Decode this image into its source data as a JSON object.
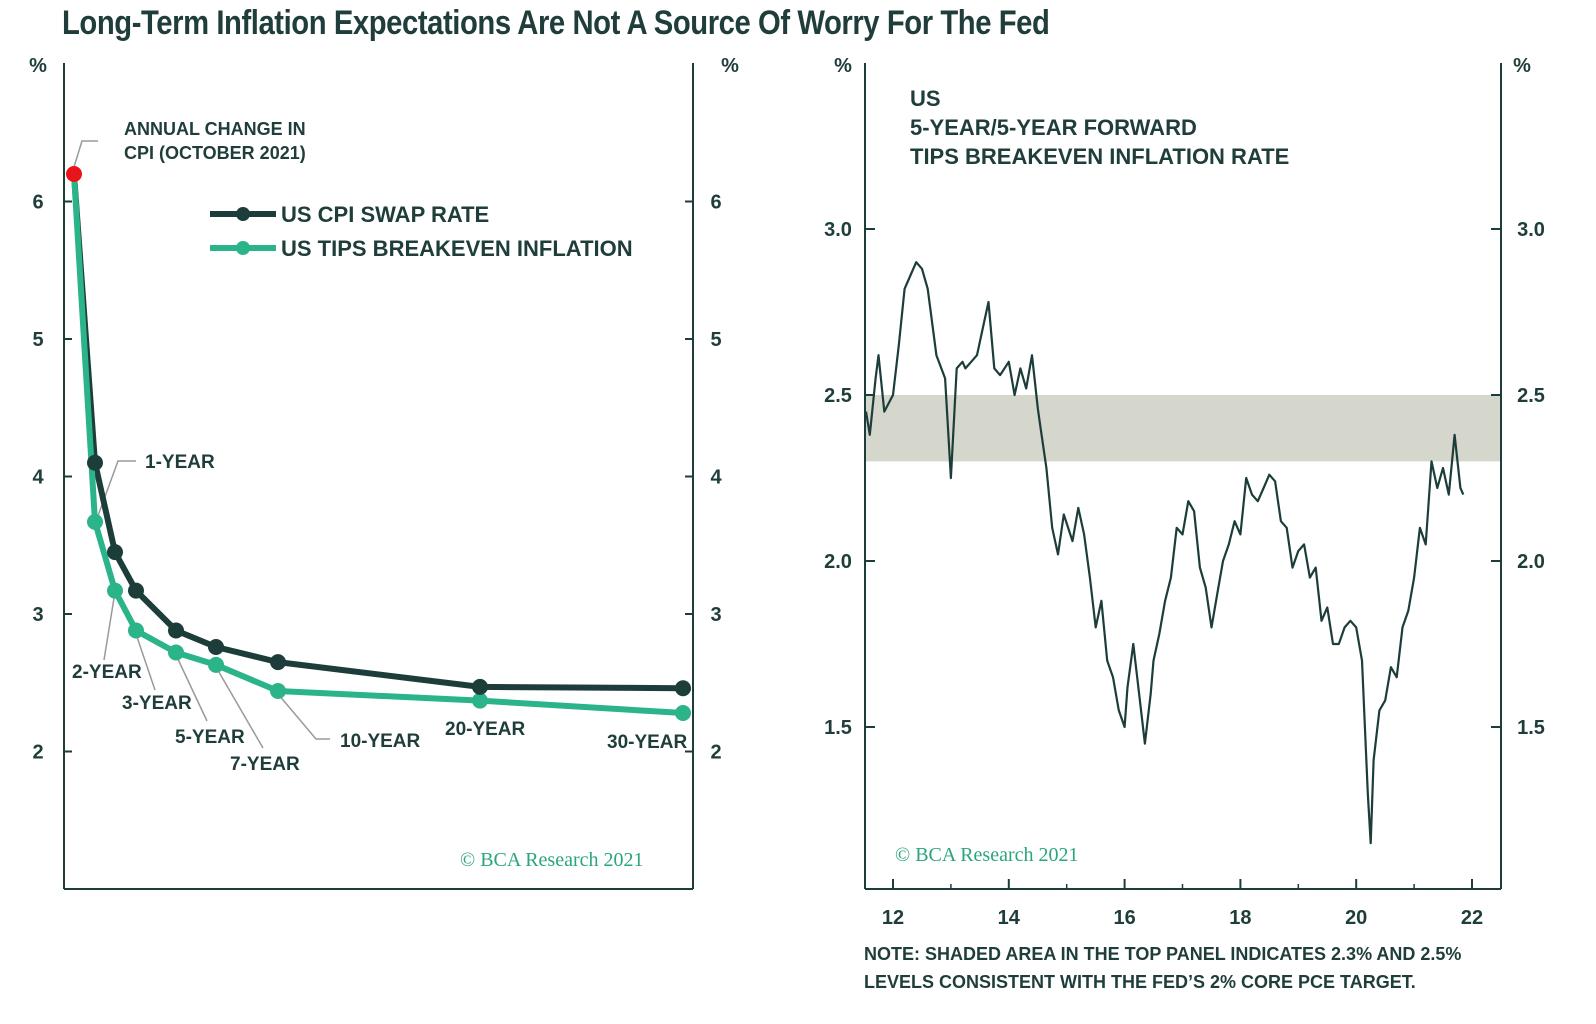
{
  "title": "Long-Term Inflation Expectations Are Not A Source Of Worry For The Fed",
  "colors": {
    "dark": "#1c3d3a",
    "green": "#2bb38a",
    "red": "#e8131b",
    "band": "#d6d7cc",
    "copyright": "#2aa57e"
  },
  "chart_data": [
    {
      "type": "line",
      "y_unit_left": "%",
      "y_unit_right": "%",
      "ylim": [
        1.0,
        6.9
      ],
      "yticks": [
        2,
        3,
        4,
        5,
        6
      ],
      "grid": false,
      "legend_position": "upper-middle",
      "categories": [
        "1-YEAR",
        "2-YEAR",
        "3-YEAR",
        "5-YEAR",
        "7-YEAR",
        "10-YEAR",
        "20-YEAR",
        "30-YEAR"
      ],
      "maturity_years": [
        1,
        2,
        3,
        5,
        7,
        10,
        20,
        30
      ],
      "series": [
        {
          "name": "US CPI SWAP RATE",
          "color": "#1c3d3a",
          "values": [
            4.1,
            3.45,
            3.17,
            2.88,
            2.76,
            2.65,
            2.47,
            2.46
          ]
        },
        {
          "name": "US TIPS BREAKEVEN INFLATION",
          "color": "#2bb38a",
          "values": [
            3.67,
            3.17,
            2.88,
            2.72,
            2.63,
            2.44,
            2.37,
            2.28
          ]
        }
      ],
      "highlight_point": {
        "value": 6.2,
        "label": "ANNUAL CHANGE IN CPI (OCTOBER 2021)",
        "color": "#e8131b"
      },
      "annotations": [
        "1-YEAR",
        "2-YEAR",
        "3-YEAR",
        "5-YEAR",
        "7-YEAR",
        "10-YEAR",
        "20-YEAR",
        "30-YEAR"
      ],
      "copyright": "© BCΑ Research 2021"
    },
    {
      "type": "line",
      "title_lines": [
        "US",
        "5-YEAR/5-YEAR FORWARD",
        "TIPS BREAKEVEN INFLATION RATE"
      ],
      "y_unit_left": "%",
      "y_unit_right": "%",
      "ylim": [
        1.0,
        3.5
      ],
      "yticks": [
        1.5,
        2.0,
        2.5,
        3.0
      ],
      "ytick_labels": [
        "1.5",
        "2.0",
        "2.5",
        "3.0"
      ],
      "xlim": [
        2011.5,
        2022.5
      ],
      "xticks": [
        2012,
        2014,
        2016,
        2018,
        2020,
        2022
      ],
      "xtick_labels": [
        "12",
        "14",
        "16",
        "18",
        "20",
        "22"
      ],
      "grid": false,
      "shaded_band": {
        "from": 2.3,
        "to": 2.5,
        "color": "#d6d7cc"
      },
      "series": [
        {
          "color": "#1c3d3a",
          "x": [
            2011.5,
            2011.6,
            2011.7,
            2011.75,
            2011.85,
            2012.0,
            2012.1,
            2012.2,
            2012.3,
            2012.4,
            2012.5,
            2012.6,
            2012.75,
            2012.9,
            2013.0,
            2013.1,
            2013.2,
            2013.25,
            2013.35,
            2013.45,
            2013.55,
            2013.65,
            2013.75,
            2013.85,
            2014.0,
            2014.1,
            2014.2,
            2014.3,
            2014.4,
            2014.5,
            2014.55,
            2014.65,
            2014.75,
            2014.85,
            2014.95,
            2015.1,
            2015.2,
            2015.3,
            2015.4,
            2015.5,
            2015.6,
            2015.7,
            2015.8,
            2015.9,
            2016.0,
            2016.05,
            2016.15,
            2016.25,
            2016.35,
            2016.45,
            2016.5,
            2016.6,
            2016.7,
            2016.8,
            2016.9,
            2017.0,
            2017.1,
            2017.2,
            2017.3,
            2017.4,
            2017.5,
            2017.6,
            2017.7,
            2017.8,
            2017.9,
            2018.0,
            2018.1,
            2018.2,
            2018.3,
            2018.4,
            2018.5,
            2018.6,
            2018.7,
            2018.8,
            2018.9,
            2019.0,
            2019.1,
            2019.2,
            2019.3,
            2019.4,
            2019.5,
            2019.6,
            2019.7,
            2019.8,
            2019.9,
            2020.0,
            2020.1,
            2020.2,
            2020.25,
            2020.3,
            2020.4,
            2020.5,
            2020.6,
            2020.7,
            2020.8,
            2020.9,
            2021.0,
            2021.1,
            2021.2,
            2021.3,
            2021.4,
            2021.5,
            2021.6,
            2021.7,
            2021.8,
            2021.85
          ],
          "y": [
            2.45,
            2.38,
            2.55,
            2.62,
            2.45,
            2.5,
            2.65,
            2.82,
            2.86,
            2.9,
            2.88,
            2.82,
            2.62,
            2.55,
            2.25,
            2.58,
            2.6,
            2.58,
            2.6,
            2.62,
            2.7,
            2.78,
            2.58,
            2.56,
            2.6,
            2.5,
            2.58,
            2.52,
            2.62,
            2.46,
            2.4,
            2.28,
            2.1,
            2.02,
            2.14,
            2.06,
            2.16,
            2.08,
            1.95,
            1.8,
            1.88,
            1.7,
            1.65,
            1.55,
            1.5,
            1.62,
            1.75,
            1.6,
            1.45,
            1.6,
            1.7,
            1.78,
            1.88,
            1.95,
            2.1,
            2.08,
            2.18,
            2.15,
            1.98,
            1.92,
            1.8,
            1.9,
            2.0,
            2.05,
            2.12,
            2.08,
            2.25,
            2.2,
            2.18,
            2.22,
            2.26,
            2.24,
            2.12,
            2.1,
            1.98,
            2.03,
            2.05,
            1.95,
            1.98,
            1.82,
            1.86,
            1.75,
            1.75,
            1.8,
            1.82,
            1.8,
            1.7,
            1.3,
            1.15,
            1.4,
            1.55,
            1.58,
            1.68,
            1.65,
            1.8,
            1.85,
            1.95,
            2.1,
            2.05,
            2.3,
            2.22,
            2.28,
            2.2,
            2.38,
            2.22,
            2.2
          ]
        }
      ],
      "copyright": "© BCΑ Research 2021"
    }
  ],
  "note_lines": [
    "NOTE: SHADED AREA IN THE TOP PANEL INDICATES 2.3% AND 2.5%",
    "LEVELS CONSISTENT WITH THE FED’S 2% CORE PCE TARGET."
  ]
}
